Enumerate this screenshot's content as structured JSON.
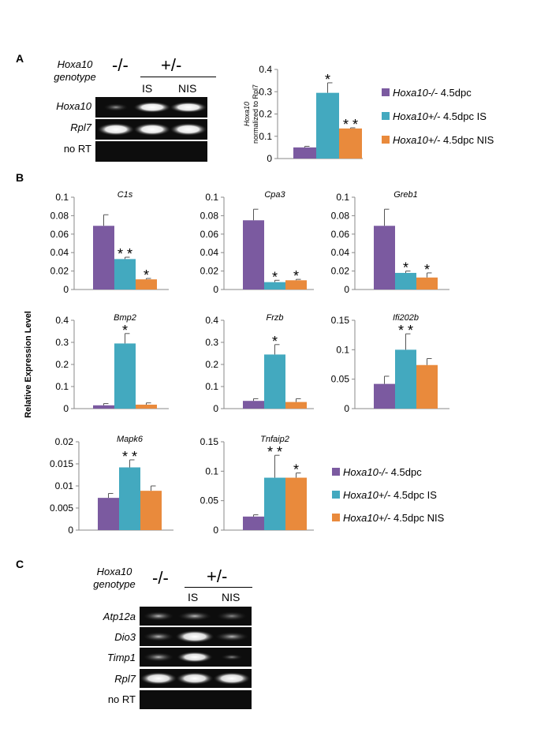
{
  "colors": {
    "purple": "#7b5aa0",
    "teal": "#43a9bf",
    "orange": "#e98a3c"
  },
  "panels": {
    "A": "A",
    "B": "B",
    "C": "C"
  },
  "panelA": {
    "genotype_label_1": "Hoxa10",
    "genotype_label_2": "genotype",
    "group_ko": "-/-",
    "group_het": "+/-",
    "lane_is": "IS",
    "lane_nis": "NIS",
    "gel_rows": [
      "Hoxa10",
      "Rpl7",
      "no RT"
    ]
  },
  "panelB": {
    "ylabel": "Relative Expression Level"
  },
  "panelC": {
    "genotype_label_1": "Hoxa10",
    "genotype_label_2": "genotype",
    "group_ko": "-/-",
    "group_het": "+/-",
    "lane_is": "IS",
    "lane_nis": "NIS",
    "gel_rows": [
      "Atp12a",
      "Dio3",
      "Timp1",
      "Rpl7",
      "no RT"
    ]
  },
  "legend": {
    "items": [
      {
        "gene": "Hoxa10-/-",
        "rest": " 4.5dpc"
      },
      {
        "gene": "Hoxa10+/-",
        "rest": " 4.5dpc IS"
      },
      {
        "gene": "Hoxa10+/-",
        "rest": " 4.5dpc NIS"
      }
    ]
  },
  "chart_data": [
    {
      "id": "hoxa10",
      "type": "bar",
      "title": "",
      "ylabel_line1": "Hoxa10",
      "ylabel_line2": "normalized to Rpl7",
      "ylim": [
        0,
        0.4
      ],
      "ticks": [
        "0",
        "0.1",
        "0.2",
        "0.3",
        "0.4"
      ],
      "series": [
        {
          "values": [
            0.05,
            0.295,
            0.135
          ],
          "errors": [
            0.005,
            0.045,
            0.003
          ]
        }
      ],
      "sig": [
        "",
        "*",
        "**"
      ]
    },
    {
      "id": "c1s",
      "type": "bar",
      "title": "C1s",
      "ylim": [
        0,
        0.1
      ],
      "ticks": [
        "0",
        "0.02",
        "0.04",
        "0.06",
        "0.08",
        "0.1"
      ],
      "series": [
        {
          "values": [
            0.069,
            0.033,
            0.011
          ],
          "errors": [
            0.012,
            0.002,
            0.001
          ]
        }
      ],
      "sig": [
        "",
        "**",
        "*"
      ]
    },
    {
      "id": "cpa3",
      "type": "bar",
      "title": "Cpa3",
      "ylim": [
        0,
        0.1
      ],
      "ticks": [
        "0",
        "0.02",
        "0.04",
        "0.06",
        "0.08",
        "0.1"
      ],
      "series": [
        {
          "values": [
            0.075,
            0.008,
            0.01
          ],
          "errors": [
            0.012,
            0.002,
            0.001
          ]
        }
      ],
      "sig": [
        "",
        "*",
        "*"
      ]
    },
    {
      "id": "greb1",
      "type": "bar",
      "title": "Greb1",
      "ylim": [
        0,
        0.1
      ],
      "ticks": [
        "0",
        "0.02",
        "0.04",
        "0.06",
        "0.08",
        "0.1"
      ],
      "series": [
        {
          "values": [
            0.069,
            0.018,
            0.013
          ],
          "errors": [
            0.018,
            0.002,
            0.005
          ]
        }
      ],
      "sig": [
        "",
        "*",
        "*"
      ]
    },
    {
      "id": "bmp2",
      "type": "bar",
      "title": "Bmp2",
      "ylim": [
        0,
        0.4
      ],
      "ticks": [
        "0",
        "0.1",
        "0.2",
        "0.3",
        "0.4"
      ],
      "series": [
        {
          "values": [
            0.015,
            0.295,
            0.018
          ],
          "errors": [
            0.008,
            0.045,
            0.008
          ]
        }
      ],
      "sig": [
        "",
        "*",
        ""
      ]
    },
    {
      "id": "frzb",
      "type": "bar",
      "title": "Frzb",
      "ylim": [
        0,
        0.4
      ],
      "ticks": [
        "0",
        "0.1",
        "0.2",
        "0.3",
        "0.4"
      ],
      "series": [
        {
          "values": [
            0.035,
            0.245,
            0.03
          ],
          "errors": [
            0.01,
            0.045,
            0.015
          ]
        }
      ],
      "sig": [
        "",
        "*",
        ""
      ]
    },
    {
      "id": "ifi202b",
      "type": "bar",
      "title": "Ifi202b",
      "ylim": [
        0,
        0.15
      ],
      "ticks": [
        "0",
        "0.05",
        "0.1",
        "0.15"
      ],
      "series": [
        {
          "values": [
            0.042,
            0.1,
            0.074
          ],
          "errors": [
            0.013,
            0.027,
            0.011
          ]
        }
      ],
      "sig": [
        "",
        "**",
        ""
      ]
    },
    {
      "id": "mapk6",
      "type": "bar",
      "title": "Mapk6",
      "ylim": [
        0,
        0.02
      ],
      "ticks": [
        "0",
        "0.005",
        "0.01",
        "0.015",
        "0.02"
      ],
      "series": [
        {
          "values": [
            0.0073,
            0.0142,
            0.0089
          ],
          "errors": [
            0.001,
            0.0017,
            0.0011
          ]
        }
      ],
      "sig": [
        "",
        "**",
        ""
      ]
    },
    {
      "id": "tnfaip2",
      "type": "bar",
      "title": "Tnfaip2",
      "ylim": [
        0,
        0.15
      ],
      "ticks": [
        "0",
        "0.05",
        "0.1",
        "0.15"
      ],
      "series": [
        {
          "values": [
            0.023,
            0.089,
            0.089
          ],
          "errors": [
            0.003,
            0.038,
            0.008
          ]
        }
      ],
      "sig": [
        "",
        "**",
        "*"
      ]
    }
  ]
}
